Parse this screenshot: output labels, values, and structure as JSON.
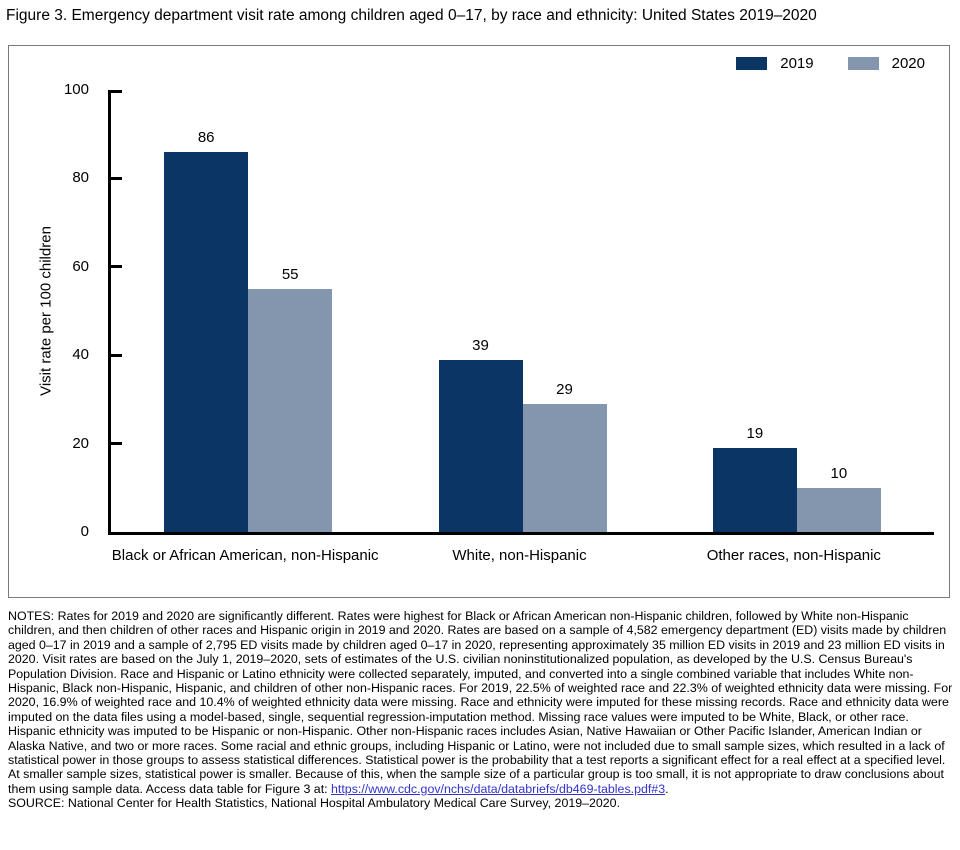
{
  "figure": {
    "title": "Figure 3. Emergency department visit rate among children aged 0–17, by race and ethnicity: United States 2019–2020"
  },
  "chart_data": {
    "type": "bar",
    "categories": [
      "Black or African American, non-Hispanic",
      "White, non-Hispanic",
      "Other races, non-Hispanic"
    ],
    "series": [
      {
        "name": "2019",
        "color": "#0a3564",
        "values": [
          86,
          39,
          19
        ]
      },
      {
        "name": "2020",
        "color": "#8496ad",
        "values": [
          55,
          29,
          10
        ]
      }
    ],
    "title": "",
    "xlabel": "",
    "ylabel": "Visit rate per 100 children",
    "ylim": [
      0,
      100
    ],
    "yticks": [
      0,
      20,
      40,
      60,
      80,
      100
    ],
    "grid": false,
    "legend_position": "top-right",
    "value_labels_shown": true,
    "axis_color": "#000000",
    "frame_border_color": "#7a7a7a"
  },
  "notes": {
    "text": "NOTES: Rates for 2019 and 2020 are significantly different. Rates were highest for Black or African American non-Hispanic children, followed by White non-Hispanic children, and then children of other races and Hispanic origin in 2019 and 2020. Rates are based on a sample of 4,582 emergency department (ED) visits made by children aged 0–17 in 2019 and a sample of 2,795 ED visits made by children aged 0–17 in 2020, representing approximately 35 million ED visits in 2019 and 23 million ED visits in 2020. Visit rates are based on the July 1, 2019–2020, sets of estimates of the U.S. civilian noninstitutionalized population, as developed by the U.S. Census Bureau's Population Division. Race and Hispanic or Latino ethnicity were collected separately, imputed, and converted into a single combined variable that includes White non-Hispanic, Black non-Hispanic, Hispanic, and children of other non-Hispanic races. For 2019, 22.5% of weighted race and 22.3% of weighted ethnicity data were missing. For 2020, 16.9% of weighted race and 10.4% of weighted ethnicity data were missing. Race and ethnicity were imputed for these missing records. Race and ethnicity data were imputed on the data files using a model-based, single, sequential regression-imputation method. Missing race values were imputed to be White, Black, or other race. Hispanic ethnicity was imputed to be Hispanic or non-Hispanic. Other non-Hispanic races includes Asian, Native Hawaiian or Other Pacific Islander, American Indian or Alaska Native, and two or more races. Some racial and ethnic groups, including Hispanic or Latino, were not included due to small sample sizes, which resulted in a lack of statistical power in those groups to assess statistical differences. Statistical power is the probability that a test reports a significant effect for a real effect at a specified level. At smaller sample sizes, statistical power is smaller. Because of this, when the sample size of a particular group is too small, it is not appropriate to draw conclusions about them using sample data. Access data table for Figure 3 at: ",
    "link": "https://www.cdc.gov/nchs/data/databriefs/db469-tables.pdf#3",
    "after_link": ".",
    "source": "SOURCE: National Center for Health Statistics, National Hospital Ambulatory Medical Care Survey, 2019–2020.",
    "link_color": "#3333cc"
  }
}
